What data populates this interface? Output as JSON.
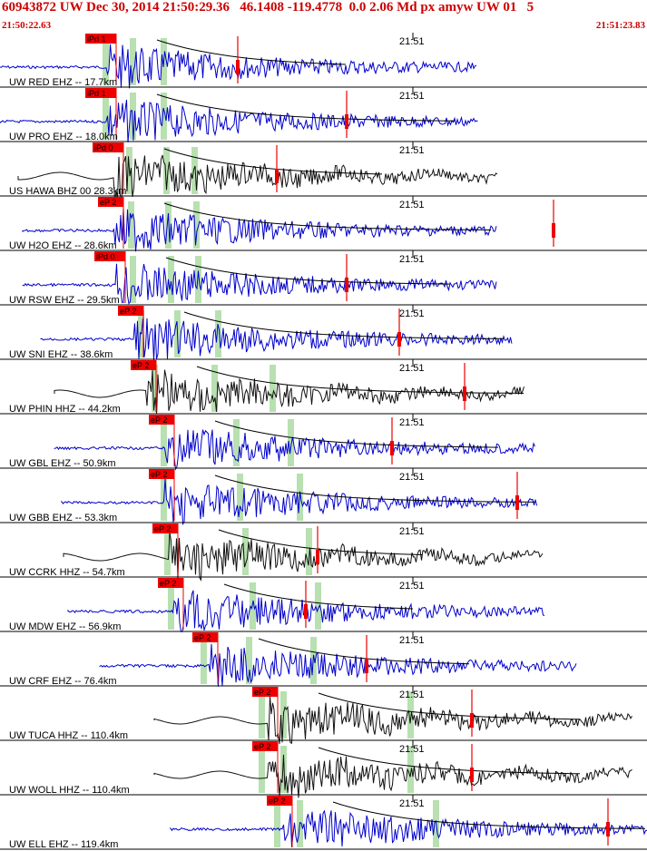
{
  "header": {
    "title": "60943872 UW Dec 30, 2014 21:50:29.36   46.1408 -119.4778  0.0 2.06 Md px amyw UW 01   5",
    "start_time": "21:50:22.63",
    "end_time": "21:51:23.83"
  },
  "colors": {
    "header_text": "#cc0000",
    "trace_blue": "#0000cc",
    "trace_black": "#111111",
    "pick_red": "#ee0000",
    "phase_window_green": "#b8e0b0",
    "coda_curve": "#000000"
  },
  "minute_tick_label": "21:51",
  "traces": [
    {
      "label": "UW RED EHZ -- 17.7km",
      "pick": "iPd 1",
      "color": "blue"
    },
    {
      "label": "UW PRO EHZ -- 18.0km",
      "pick": "iPd 1",
      "color": "blue"
    },
    {
      "label": "US HAWA BHZ 00 28.3km",
      "pick": "iPd 0",
      "color": "black"
    },
    {
      "label": "UW H2O EHZ -- 28.6km",
      "pick": "eP 2",
      "color": "blue"
    },
    {
      "label": "UW RSW EHZ -- 29.5km",
      "pick": "iPd 0",
      "color": "blue"
    },
    {
      "label": "UW SNI EHZ -- 38.6km",
      "pick": "eP 2",
      "color": "blue"
    },
    {
      "label": "UW PHIN HHZ -- 44.2km",
      "pick": "eP 2",
      "color": "black"
    },
    {
      "label": "UW GBL EHZ -- 50.9km",
      "pick": "eP 2",
      "color": "blue"
    },
    {
      "label": "UW GBB EHZ -- 53.3km",
      "pick": "eP 2",
      "color": "blue"
    },
    {
      "label": "UW CCRK HHZ -- 54.7km",
      "pick": "eP 2",
      "color": "black"
    },
    {
      "label": "UW MDW EHZ -- 56.9km",
      "pick": "eP 2",
      "color": "blue"
    },
    {
      "label": "UW CRF EHZ -- 76.4km",
      "pick": "eP 2",
      "color": "blue"
    },
    {
      "label": "UW TUCA HHZ -- 110.4km",
      "pick": "eP 2",
      "color": "black"
    },
    {
      "label": "UW WOLL HHZ -- 110.4km",
      "pick": "eP 2",
      "color": "black"
    },
    {
      "label": "UW ELL EHZ -- 119.4km",
      "pick": "eP 2",
      "color": "blue"
    }
  ]
}
